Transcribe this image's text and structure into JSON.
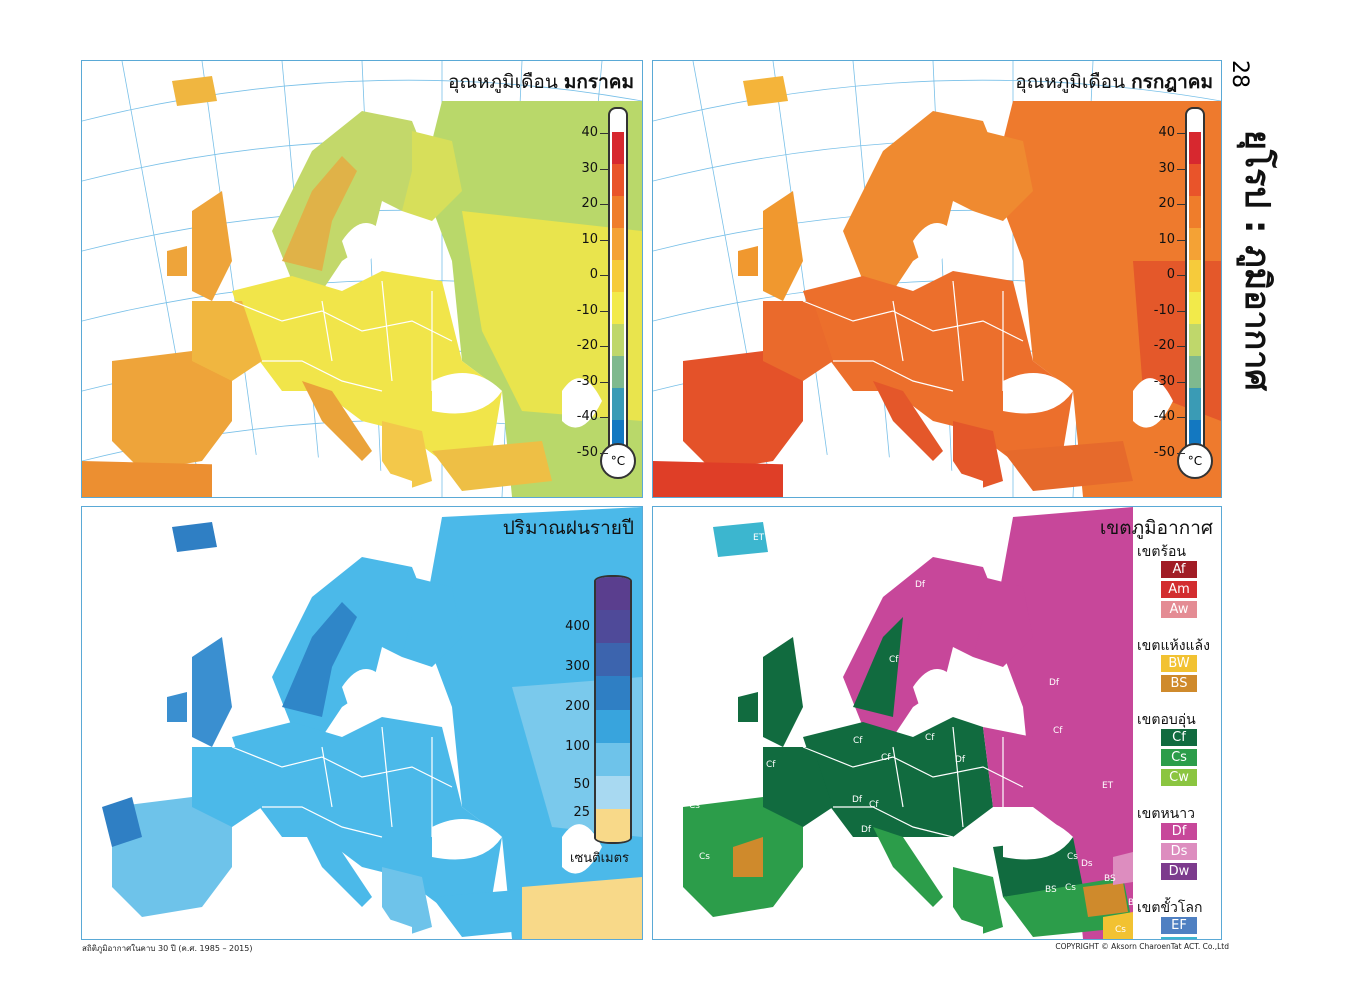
{
  "page": {
    "number": "28",
    "chapter_title": "ยุโรป : ภูมิอากาศ",
    "footer_left": "สถิติภูมิอากาศในคาบ 30 ปี (ค.ศ. 1985 – 2015)",
    "footer_right": "COPYRIGHT © Aksorn CharoenTat ACT. Co.,Ltd"
  },
  "panels": {
    "jan": {
      "title_prefix": "อุณหภูมิเดือน",
      "title_bold": "มกราคม"
    },
    "jul": {
      "title_prefix": "อุณหภูมิเดือน",
      "title_bold": "กรกฎาคม"
    },
    "rain": {
      "title": "ปริมาณฝนรายปี"
    },
    "climate": {
      "title": "เขตภูมิอากาศ"
    }
  },
  "temperature_scale": {
    "labels": [
      "40",
      "30",
      "20",
      "10",
      "0",
      "-10",
      "-20",
      "-30",
      "-40",
      "-50"
    ],
    "unit": "°C",
    "colors": [
      "#d7282f",
      "#e9542a",
      "#ef7d2b",
      "#f4a235",
      "#f6cb3b",
      "#f2ea4a",
      "#bfd76b",
      "#7fb98e",
      "#3a9bb5",
      "#1378c1"
    ]
  },
  "rain_scale": {
    "labels": [
      "400",
      "300",
      "200",
      "100",
      "50",
      "25"
    ],
    "unit": "เซนติเมตร",
    "colors": [
      "#5a3e8e",
      "#4f4a99",
      "#3c64ae",
      "#2f7fc4",
      "#38a4dd",
      "#6ec3ea",
      "#a8d9f1",
      "#f8d989"
    ]
  },
  "climate_legend": {
    "groups": [
      {
        "head": "เขตร้อน",
        "items": [
          {
            "code": "Af",
            "color": "#a11c25"
          },
          {
            "code": "Am",
            "color": "#d22d2f"
          },
          {
            "code": "Aw",
            "color": "#e48c94"
          }
        ]
      },
      {
        "head": "เขตแห้งแล้ง",
        "items": [
          {
            "code": "BW",
            "color": "#f2c232"
          },
          {
            "code": "BS",
            "color": "#cf8a2c"
          }
        ]
      },
      {
        "head": "เขตอบอุ่น",
        "items": [
          {
            "code": "Cf",
            "color": "#116b3f"
          },
          {
            "code": "Cs",
            "color": "#2c9d4a"
          },
          {
            "code": "Cw",
            "color": "#8bc540"
          }
        ]
      },
      {
        "head": "เขตหนาว",
        "items": [
          {
            "code": "Df",
            "color": "#c7479a"
          },
          {
            "code": "Ds",
            "color": "#dd8dbf"
          },
          {
            "code": "Dw",
            "color": "#7c3b8d"
          }
        ]
      },
      {
        "head": "เขตขั้วโลก",
        "items": [
          {
            "code": "EF",
            "color": "#4f80c2"
          },
          {
            "code": "ET",
            "color": "#3cb6cf"
          }
        ]
      }
    ],
    "map_labels": [
      "ET",
      "Df",
      "Cf",
      "Cf",
      "Cf",
      "Cf",
      "Df",
      "Df",
      "Cf",
      "Cf",
      "Cf",
      "ET",
      "Df",
      "Df",
      "Cf",
      "Cs",
      "Cs",
      "Cs",
      "Cs",
      "Cs",
      "Cs",
      "BS",
      "Ds",
      "BS",
      "BW",
      "Cs"
    ]
  }
}
